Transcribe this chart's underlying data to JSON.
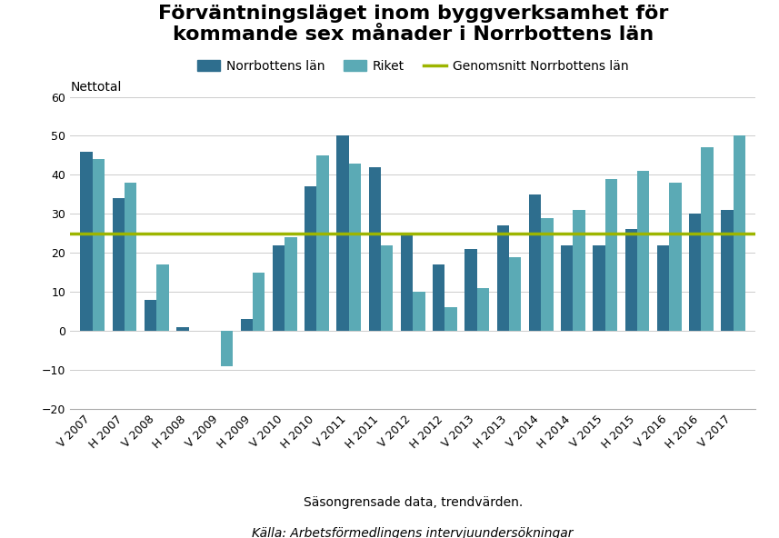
{
  "title": "Förväntningsläget inom byggverksamhet för\nkommande sex månader i Norrbottens län",
  "ylabel": "Nettotal",
  "xlabel": "Säsongrensade data, trendvärden.",
  "source": "Källa: Arbetsförmedlingens intervjuundersökningar",
  "categories": [
    "V 2007",
    "H 2007",
    "V 2008",
    "H 2008",
    "V 2009",
    "H 2009",
    "V 2010",
    "H 2010",
    "V 2011",
    "H 2011",
    "V 2012",
    "H 2012",
    "V 2013",
    "H 2013",
    "V 2014",
    "H 2014",
    "V 2015",
    "H 2015",
    "V 2016",
    "H 2016",
    "V 2017"
  ],
  "norrbotten": [
    46,
    34,
    8,
    1,
    0,
    3,
    22,
    37,
    50,
    42,
    25,
    17,
    21,
    27,
    35,
    22,
    22,
    26,
    22,
    30,
    31
  ],
  "riket": [
    44,
    38,
    17,
    0,
    -9,
    15,
    24,
    45,
    43,
    22,
    10,
    6,
    11,
    19,
    29,
    31,
    39,
    41,
    38,
    47,
    50
  ],
  "average_line": 25,
  "color_norrbotten": "#2E6E8E",
  "color_riket": "#5BAAB5",
  "color_average": "#9DB500",
  "ylim": [
    -20,
    60
  ],
  "yticks": [
    -20,
    -10,
    0,
    10,
    20,
    30,
    40,
    50,
    60
  ],
  "legend_labels": [
    "Norrbottens län",
    "Riket",
    "Genomsnitt Norrbottens län"
  ],
  "title_fontsize": 16,
  "label_fontsize": 10,
  "tick_fontsize": 9,
  "bar_width": 0.38
}
